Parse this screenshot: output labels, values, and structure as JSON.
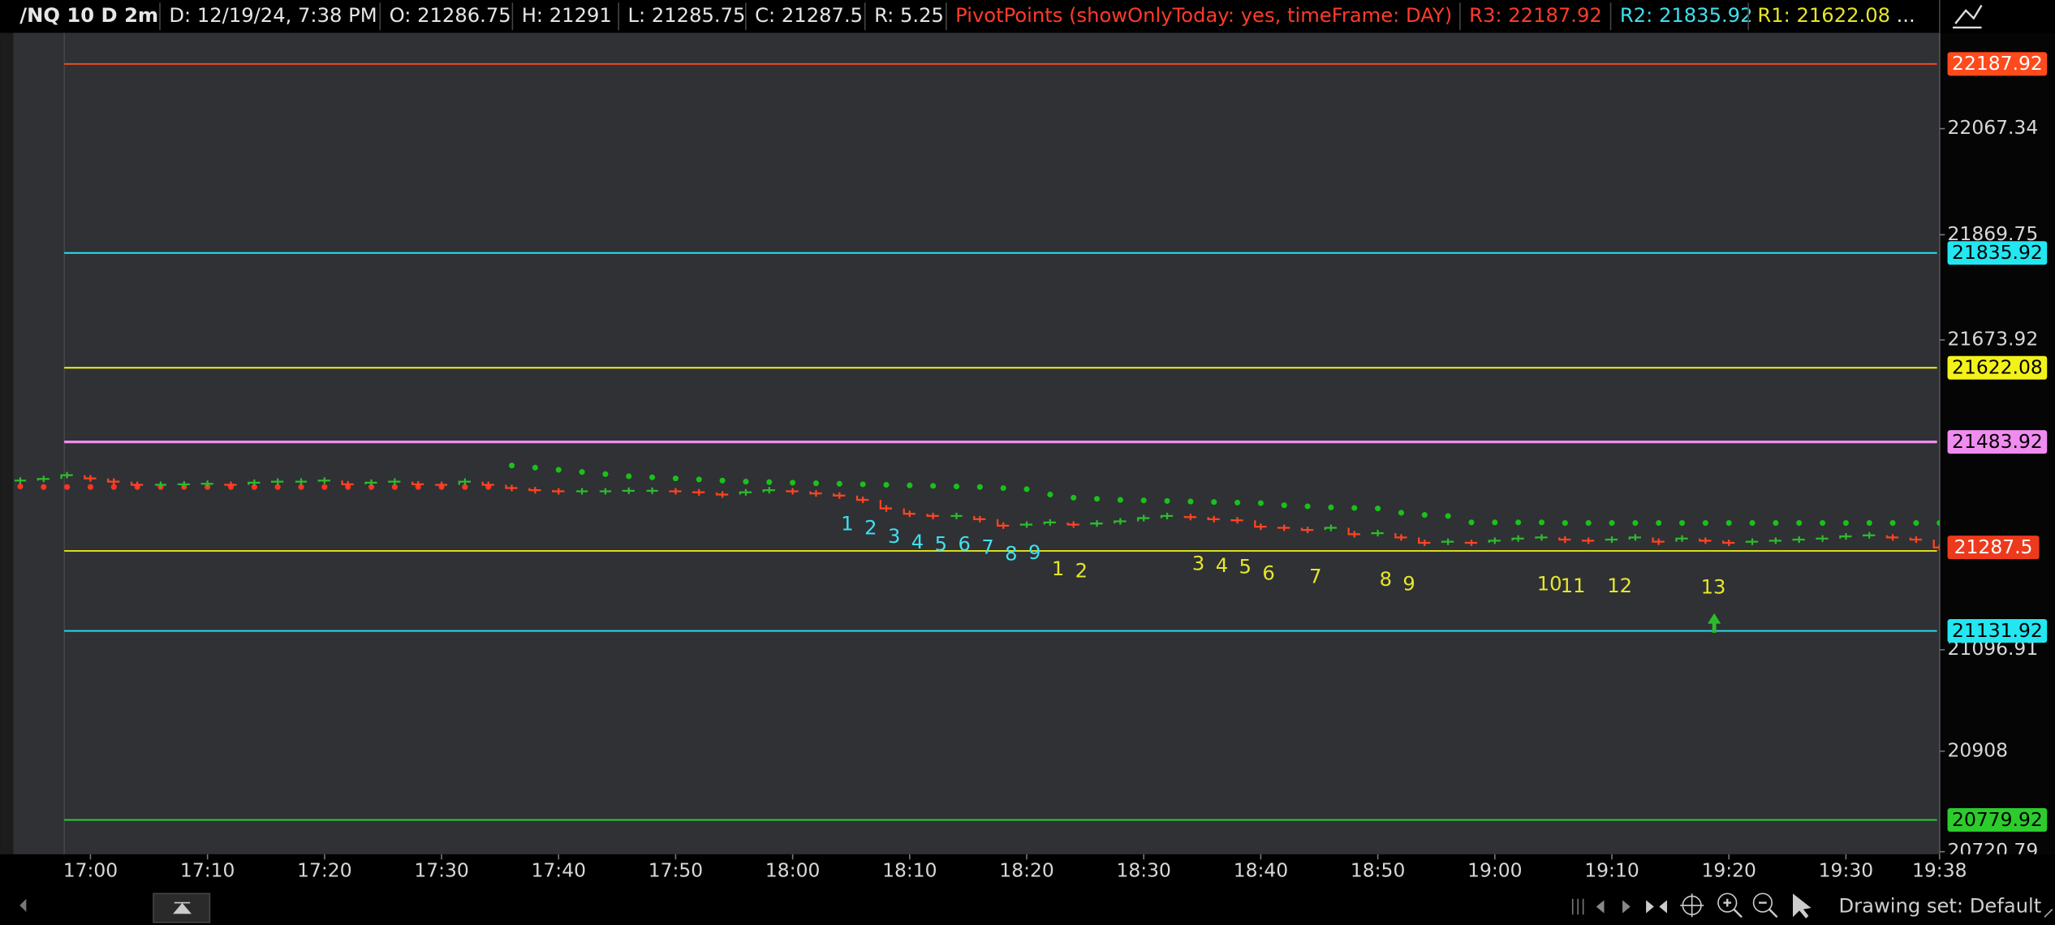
{
  "header": {
    "symbol": "/NQ 10 D 2m",
    "date": "D: 12/19/24, 7:38 PM",
    "open": "O: 21286.75",
    "high": "H: 21291",
    "low": "L: 21285.75",
    "close": "C: 21287.5",
    "range": "R: 5.25",
    "study": "PivotPoints (showOnlyToday: yes, timeFrame: DAY)",
    "r3": "R3: 22187.92",
    "r2": "R2: 21835.92",
    "r1": "R1: 21622.08",
    "more": "..."
  },
  "chart_data": {
    "type": "step",
    "x": [
      "16:54",
      "16:56",
      "16:58",
      "17:00",
      "17:02",
      "17:04",
      "17:06",
      "17:08",
      "17:10",
      "17:12",
      "17:14",
      "17:16",
      "17:18",
      "17:20",
      "17:22",
      "17:24",
      "17:26",
      "17:28",
      "17:30",
      "17:32",
      "17:34",
      "17:36",
      "17:38",
      "17:40",
      "17:42",
      "17:44",
      "17:46",
      "17:48",
      "17:50",
      "17:52",
      "17:54",
      "17:56",
      "17:58",
      "18:00",
      "18:02",
      "18:04",
      "18:06",
      "18:08",
      "18:10",
      "18:12",
      "18:14",
      "18:16",
      "18:18",
      "18:20",
      "18:22",
      "18:24",
      "18:26",
      "18:28",
      "18:30",
      "18:32",
      "18:34",
      "18:36",
      "18:38",
      "18:40",
      "18:42",
      "18:44",
      "18:46",
      "18:48",
      "18:50",
      "18:52",
      "18:54",
      "18:56",
      "18:58",
      "19:00",
      "19:02",
      "19:04",
      "19:06",
      "19:08",
      "19:10",
      "19:12",
      "19:14",
      "19:16",
      "19:18",
      "19:20",
      "19:22",
      "19:24",
      "19:26",
      "19:28",
      "19:30",
      "19:32",
      "19:34",
      "19:36",
      "19:38"
    ],
    "values": [
      21412,
      21415,
      21422,
      21416,
      21410,
      21404,
      21404,
      21405,
      21406,
      21404,
      21408,
      21410,
      21410,
      21412,
      21405,
      21408,
      21410,
      21405,
      21404,
      21410,
      21404,
      21398,
      21394,
      21392,
      21392,
      21392,
      21393,
      21393,
      21392,
      21390,
      21386,
      21390,
      21394,
      21392,
      21388,
      21384,
      21376,
      21360,
      21350,
      21346,
      21346,
      21340,
      21328,
      21330,
      21334,
      21330,
      21332,
      21336,
      21342,
      21346,
      21344,
      21340,
      21338,
      21326,
      21324,
      21320,
      21324,
      21312,
      21314,
      21306,
      21296,
      21298,
      21296,
      21300,
      21304,
      21306,
      21302,
      21300,
      21302,
      21306,
      21298,
      21304,
      21300,
      21296,
      21298,
      21300,
      21302,
      21304,
      21308,
      21310,
      21306,
      21302,
      21287.5
    ],
    "up_color": "#2dbb2d",
    "down_color": "#ff4422",
    "ylim": [
      20716,
      22246
    ],
    "yticks": [
      22067.34,
      21869.75,
      21673.92,
      21096.91,
      20908,
      20720.79
    ],
    "xticks": [
      "17:00",
      "17:10",
      "17:20",
      "17:30",
      "17:40",
      "17:50",
      "18:00",
      "18:10",
      "18:20",
      "18:30",
      "18:40",
      "18:50",
      "19:00",
      "19:10",
      "19:20",
      "19:30",
      "19:38"
    ],
    "levels": [
      {
        "value": 22187.92,
        "color": "#ff4a1c",
        "text_color": "#ffffff",
        "badge": true
      },
      {
        "value": 21835.92,
        "color": "#22e6f0",
        "text_color": "#000000",
        "badge": true
      },
      {
        "value": 21622.08,
        "color": "#f2f21a",
        "text_color": "#000000",
        "badge": true
      },
      {
        "value": 21483.92,
        "color": "#f08cf0",
        "text_color": "#000000",
        "badge": true
      },
      {
        "value": 21281,
        "color": "#e6e61a",
        "text_color": "#000000",
        "badge": false
      },
      {
        "value": 21131.92,
        "color": "#22e6f0",
        "text_color": "#000000",
        "badge": true
      },
      {
        "value": 20779.92,
        "color": "#2ccc2c",
        "text_color": "#000000",
        "badge": true
      }
    ],
    "last_color": "#ee3a1c",
    "sar": [
      {
        "color": "#ff3322",
        "x": [
          "16:54",
          "16:56",
          "16:58",
          "17:00",
          "17:02",
          "17:04",
          "17:06",
          "17:08",
          "17:10",
          "17:12",
          "17:14",
          "17:16",
          "17:18",
          "17:20",
          "17:22",
          "17:24",
          "17:26",
          "17:28",
          "17:30",
          "17:32",
          "17:34"
        ],
        "values": [
          21401,
          21400,
          21400,
          21400,
          21400,
          21400,
          21400,
          21400,
          21400,
          21400,
          21400,
          21400,
          21400,
          21400,
          21400,
          21400,
          21400,
          21400,
          21400,
          21400,
          21400
        ]
      },
      {
        "color": "#19c219",
        "x": [
          "17:36",
          "17:38",
          "17:40",
          "17:42",
          "17:44",
          "17:46",
          "17:48",
          "17:50",
          "17:52",
          "17:54",
          "17:56",
          "17:58",
          "18:00",
          "18:02",
          "18:04",
          "18:06",
          "18:08",
          "18:10",
          "18:12",
          "18:14",
          "18:16",
          "18:18",
          "18:20",
          "18:22",
          "18:24",
          "18:26",
          "18:28",
          "18:30",
          "18:32",
          "18:34",
          "18:36",
          "18:38",
          "18:40",
          "18:42",
          "18:44",
          "18:46",
          "18:48",
          "18:50",
          "18:52",
          "18:54",
          "18:56",
          "18:58",
          "19:00",
          "19:02",
          "19:04",
          "19:06",
          "19:08",
          "19:10",
          "19:12",
          "19:14",
          "19:16",
          "19:18",
          "19:20",
          "19:22",
          "19:24",
          "19:26",
          "19:28",
          "19:30",
          "19:32",
          "19:34",
          "19:36",
          "19:38"
        ],
        "values": [
          21440,
          21436,
          21432,
          21428,
          21424,
          21420,
          21418,
          21416,
          21414,
          21412,
          21410,
          21409,
          21408,
          21407,
          21406,
          21405,
          21404,
          21403,
          21402,
          21401,
          21400,
          21398,
          21396,
          21386,
          21380,
          21378,
          21376,
          21375,
          21374,
          21373,
          21372,
          21371,
          21370,
          21366,
          21364,
          21362,
          21361,
          21360,
          21352,
          21348,
          21346,
          21334,
          21334,
          21334,
          21334,
          21333,
          21333,
          21333,
          21333,
          21333,
          21333,
          21333,
          21333,
          21333,
          21333,
          21333,
          21333,
          21333,
          21333,
          21333,
          21333,
          21333
        ]
      }
    ],
    "counts": [
      {
        "color": "#3fe0f0",
        "labels": [
          "1",
          "2",
          "3",
          "4",
          "5",
          "6",
          "7",
          "8",
          "9"
        ],
        "x": [
          "18:04",
          "18:06",
          "18:08",
          "18:10",
          "18:12",
          "18:14",
          "18:16",
          "18:18",
          "18:20"
        ]
      },
      {
        "color": "#e6e62a",
        "labels": [
          "1",
          "2",
          "3",
          "4",
          "5",
          "6",
          "7",
          "8",
          "9",
          "10",
          "11",
          "12",
          "13"
        ],
        "x": [
          "18:22",
          "18:24",
          "18:34",
          "18:36",
          "18:38",
          "18:40",
          "18:44",
          "18:50",
          "18:52",
          "19:04",
          "19:06",
          "19:10",
          "19:18"
        ]
      }
    ]
  },
  "footer": {
    "drawing_set": "Drawing set: Default"
  }
}
